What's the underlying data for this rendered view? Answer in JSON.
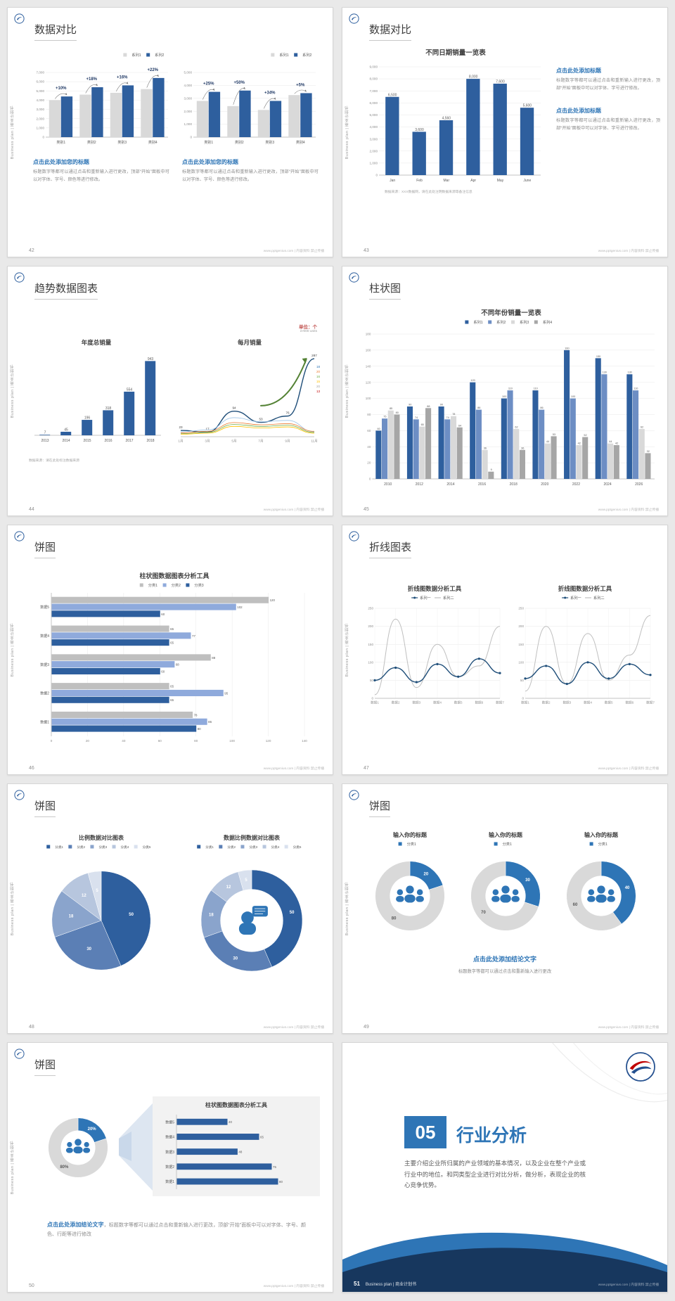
{
  "common": {
    "side_text": "Business plan | 商业计划书",
    "footer_site": "www.pptgenius.com | 内容资料 禁止传播",
    "accent_blue": "#2e75b6",
    "bar_blue": "#2e5f9e",
    "bar_gray": "#d9d9d9"
  },
  "s42": {
    "page": "42",
    "title": "数据对比",
    "charts": [
      {
        "type": "bar",
        "legend": [
          {
            "label": "系列1",
            "color": "#d9d9d9"
          },
          {
            "label": "系列2",
            "color": "#2e5f9e"
          }
        ],
        "legend_pos": "right",
        "categories": [
          "类别1",
          "类别2",
          "类别3",
          "类别4"
        ],
        "series": [
          {
            "name": "系列1",
            "color": "#d9d9d9",
            "values": [
              4000,
              4600,
              4800,
              5200
            ]
          },
          {
            "name": "系列2",
            "color": "#2e5f9e",
            "values": [
              4400,
              5400,
              5600,
              6400
            ]
          }
        ],
        "ymax": 7000,
        "yticks": [
          "7,000",
          "6,000",
          "5,000",
          "4,000",
          "3,000",
          "2,000",
          "1,000",
          "0"
        ],
        "group_labels": [
          "+10%",
          "+18%",
          "+16%",
          "+22%"
        ]
      },
      {
        "type": "bar",
        "legend": [
          {
            "label": "系列1",
            "color": "#d9d9d9"
          },
          {
            "label": "系列2",
            "color": "#2e5f9e"
          }
        ],
        "legend_pos": "right",
        "categories": [
          "类别1",
          "类别2",
          "类别3",
          "类别4"
        ],
        "series": [
          {
            "name": "系列1",
            "color": "#d9d9d9",
            "values": [
              2800,
              2400,
              2100,
              3250
            ]
          },
          {
            "name": "系列2",
            "color": "#2e5f9e",
            "values": [
              3500,
              3600,
              2800,
              3400
            ]
          }
        ],
        "ymax": 5000,
        "yticks": [
          "5,000",
          "4,000",
          "3,000",
          "2,000",
          "1,000",
          "0"
        ],
        "group_labels": [
          "+25%",
          "+50%",
          "+34%",
          "+5%"
        ]
      }
    ],
    "blocks": [
      {
        "heading": "点击此处添加您的标题",
        "body": "标题数字等都可以通过点击和重新输入进行更改，顶部“开始”面板中可以对字体、字号、颜色等进行修改。"
      },
      {
        "heading": "点击此处添加您的标题",
        "body": "标题数字等都可以通过点击和重新输入进行更改，顶部“开始”面板中可以对字体、字号、颜色等进行修改。"
      }
    ]
  },
  "s43": {
    "page": "43",
    "title": "数据对比",
    "chart": {
      "type": "bar",
      "title": "不同日期销量一览表",
      "title_size": 9.5,
      "categories": [
        "Jan",
        "Feb",
        "Mar",
        "Apr",
        "May",
        "June"
      ],
      "series": [
        {
          "name": "销量",
          "color": "#2e5f9e",
          "values": [
            6500,
            3600,
            4560,
            8000,
            7600,
            5600
          ],
          "labels": [
            "6,500",
            "3,600",
            "4,560",
            "8,000",
            "7,600",
            "5,600"
          ]
        }
      ],
      "ymax": 9000,
      "yticks": [
        "9,000",
        "8,000",
        "7,000",
        "6,000",
        "5,000",
        "4,000",
        "3,000",
        "2,000",
        "1,000",
        "0"
      ]
    },
    "source_note": "数据来源：XXX数据网，请在此处注明数据来源等备注信息",
    "blocks": [
      {
        "heading": "点击此处添加标题",
        "body": "标题数字等都可以通过点击和重新输入进行更改，顶部“开始”面板中可以对字体、字号进行修改。"
      },
      {
        "heading": "点击此处添加标题",
        "body": "标题数字等都可以通过点击和重新输入进行更改，顶部“开始”面板中可以对字体、字号进行修改。"
      }
    ]
  },
  "s44": {
    "page": "44",
    "title": "趋势数据图表",
    "unit_line1": "单位：个",
    "unit_line2": "in'000 units",
    "source_note": "数据来源：请在此处标注数据来源",
    "charts": [
      {
        "type": "bar",
        "title": "年度总销量",
        "title_size": 8.5,
        "categories": [
          "2013",
          "2014",
          "2015",
          "2016",
          "2017",
          "2018"
        ],
        "series": [
          {
            "color": "#2e5f9e",
            "values": [
              7,
              45,
              196,
              318,
              554,
              943
            ],
            "labels": [
              "7",
              "45",
              "196",
              "318",
              "554",
              "943"
            ]
          }
        ],
        "ymax": 1000,
        "yticks": []
      },
      {
        "type": "line",
        "title": "每月销量",
        "title_size": 8.5,
        "x": [
          "1月",
          "3月",
          "5月",
          "7月",
          "9月",
          "11月"
        ],
        "ymax": 300,
        "yticks": [],
        "series": [
          {
            "color": "#1f4e79",
            "width": 1.4,
            "values": [
              23,
              17,
              94,
              53,
              76,
              287
            ],
            "labels": [
              "23",
              "17",
              "94",
              "53",
              "76",
              "287"
            ]
          },
          {
            "color": "#9dc3e6",
            "width": 0.8,
            "values": [
              18,
              25,
              70,
              55,
              60,
              18
            ]
          },
          {
            "color": "#ed7d31",
            "width": 0.8,
            "values": [
              14,
              20,
              52,
              44,
              48,
              20
            ]
          },
          {
            "color": "#70ad47",
            "width": 0.8,
            "values": [
              11,
              16,
              45,
              38,
              42,
              16
            ]
          },
          {
            "color": "#ffc000",
            "width": 0.8,
            "values": [
              9,
              13,
              38,
              32,
              36,
              13
            ]
          }
        ],
        "side_labels": [
          "18",
          "20",
          "16",
          "15",
          "20",
          "13"
        ],
        "side_label_colors": [
          "#2e75b6",
          "#ed7d31",
          "#70ad47",
          "#ffc000",
          "#a6a6a6",
          "#c00000"
        ],
        "up_arrow": true
      }
    ]
  },
  "s45": {
    "page": "45",
    "title": "柱状图",
    "chart": {
      "type": "bar",
      "title": "不同年份销量一览表",
      "title_size": 9.5,
      "legend": [
        {
          "label": "系列1",
          "color": "#2e5f9e"
        },
        {
          "label": "系列2",
          "color": "#6d8ec4"
        },
        {
          "label": "系列3",
          "color": "#d9d9d9"
        },
        {
          "label": "系列4",
          "color": "#a6a6a6"
        }
      ],
      "categories": [
        "2010",
        "2012",
        "2014",
        "2016",
        "2018",
        "2020",
        "2022",
        "2024",
        "2026"
      ],
      "series": [
        {
          "color": "#2e5f9e",
          "values": [
            60,
            90,
            90,
            120,
            100,
            110,
            160,
            150,
            130
          ]
        },
        {
          "color": "#6d8ec4",
          "values": [
            75,
            74,
            74,
            86,
            110,
            86,
            100,
            130,
            110
          ]
        },
        {
          "color": "#d9d9d9",
          "values": [
            85,
            65,
            78,
            36,
            62,
            44,
            42,
            44,
            62
          ]
        },
        {
          "color": "#a6a6a6",
          "values": [
            80,
            88,
            64,
            9,
            36,
            53,
            52,
            42,
            32
          ]
        }
      ],
      "label_all": true,
      "ymax": 180,
      "yticks": [
        "180",
        "160",
        "140",
        "120",
        "100",
        "80",
        "60",
        "40",
        "20",
        "0"
      ]
    }
  },
  "s46": {
    "page": "46",
    "title": "饼图",
    "chart": {
      "type": "hbar",
      "title": "柱状图数据图表分析工具",
      "title_size": 9,
      "legend": [
        {
          "label": "分类1",
          "color": "#bfbfbf"
        },
        {
          "label": "分类2",
          "color": "#8faadc"
        },
        {
          "label": "分类3",
          "color": "#2e5f9e"
        }
      ],
      "categories": [
        "数据5",
        "数据4",
        "数据3",
        "数据2",
        "数据1"
      ],
      "series": [
        {
          "color": "#bfbfbf",
          "values": [
            120,
            65,
            88,
            65,
            78
          ]
        },
        {
          "color": "#8faadc",
          "values": [
            102,
            77,
            68,
            95,
            86
          ]
        },
        {
          "color": "#2e5f9e",
          "values": [
            60,
            65,
            60,
            65,
            80
          ]
        }
      ],
      "label_all": true,
      "xmax": 140,
      "xticks": [
        "0",
        "20",
        "40",
        "60",
        "80",
        "100",
        "120",
        "140"
      ]
    }
  },
  "s47": {
    "page": "47",
    "title": "折线图表",
    "charts": [
      {
        "type": "line",
        "title": "折线图数据分析工具",
        "title_size": 8.5,
        "legend": [
          {
            "label": "系列一",
            "color": "#1f4e79",
            "line": true,
            "dot": true
          },
          {
            "label": "系列二",
            "color": "#bfbfbf",
            "line": true
          }
        ],
        "x": [
          "数据1",
          "数据2",
          "数据3",
          "数据4",
          "数据5",
          "数据6",
          "数据7"
        ],
        "ymax": 250,
        "yticks": [
          "250",
          "200",
          "150",
          "100",
          "50",
          "0"
        ],
        "series": [
          {
            "color": "#bfbfbf",
            "width": 1,
            "values": [
              10,
              220,
              30,
              150,
              60,
              90,
              200
            ]
          },
          {
            "color": "#1f4e79",
            "width": 1.4,
            "dots": true,
            "values": [
              50,
              85,
              45,
              95,
              60,
              110,
              70
            ]
          }
        ]
      },
      {
        "type": "line",
        "title": "折线图数据分析工具",
        "title_size": 8.5,
        "legend": [
          {
            "label": "系列一",
            "color": "#1f4e79",
            "line": true,
            "dot": true
          },
          {
            "label": "系列二",
            "color": "#bfbfbf",
            "line": true
          }
        ],
        "x": [
          "数据1",
          "数据2",
          "数据3",
          "数据4",
          "数据5",
          "数据6",
          "数据7"
        ],
        "ymax": 250,
        "yticks": [
          "250",
          "200",
          "150",
          "100",
          "50",
          "0"
        ],
        "series": [
          {
            "color": "#bfbfbf",
            "width": 1,
            "values": [
              20,
              200,
              40,
              180,
              50,
              120,
              230
            ]
          },
          {
            "color": "#1f4e79",
            "width": 1.4,
            "dots": true,
            "values": [
              55,
              90,
              40,
              100,
              55,
              95,
              65
            ]
          }
        ]
      }
    ]
  },
  "s48": {
    "page": "48",
    "title": "饼图",
    "charts": [
      {
        "type": "pie",
        "title": "比例数据对比图表",
        "title_size": 8,
        "legend": [
          {
            "label": "分类1",
            "color": "#2e5f9e"
          },
          {
            "label": "分类2",
            "color": "#5b7fb5"
          },
          {
            "label": "分类3",
            "color": "#8aa4cc"
          },
          {
            "label": "分类4",
            "color": "#b7c6de"
          },
          {
            "label": "分类5",
            "color": "#d9e1ee"
          }
        ],
        "legend_size": 4.6,
        "values": [
          50,
          30,
          18,
          12,
          5
        ],
        "labels": [
          "50",
          "30",
          "18",
          "12",
          "5"
        ],
        "colors": [
          "#2e5f9e",
          "#5b7fb5",
          "#8aa4cc",
          "#b7c6de",
          "#d9e1ee"
        ],
        "inner": 0,
        "r_scale": 0.78
      },
      {
        "type": "pie",
        "title": "数据比例数据对比图表",
        "title_size": 8,
        "legend": [
          {
            "label": "分类1",
            "color": "#2e5f9e"
          },
          {
            "label": "分类2",
            "color": "#5b7fb5"
          },
          {
            "label": "分类3",
            "color": "#8aa4cc"
          },
          {
            "label": "分类4",
            "color": "#b7c6de"
          },
          {
            "label": "分类5",
            "color": "#d9e1ee"
          }
        ],
        "legend_size": 4.6,
        "values": [
          50,
          30,
          18,
          12,
          5
        ],
        "labels": [
          "50",
          "30",
          "18",
          "12",
          "5"
        ],
        "colors": [
          "#2e5f9e",
          "#5b7fb5",
          "#8aa4cc",
          "#b7c6de",
          "#d9e1ee"
        ],
        "inner": 0.62,
        "icon": "person-chat",
        "r_scale": 0.8
      }
    ]
  },
  "s49": {
    "page": "49",
    "title": "饼图",
    "charts": [
      {
        "type": "pie",
        "title": "输入你的标题",
        "title_size": 8,
        "legend": [
          {
            "label": "分类1",
            "color": "#2e75b6"
          }
        ],
        "values": [
          20,
          80
        ],
        "labels": [
          "20",
          "80"
        ],
        "colors": [
          "#2e75b6",
          "#d9d9d9"
        ],
        "label_colors": [
          "#ffffff",
          "#595959"
        ],
        "inner": 0.58,
        "icon": "people",
        "r_scale": 0.85
      },
      {
        "type": "pie",
        "title": "输入你的标题",
        "title_size": 8,
        "legend": [
          {
            "label": "分类1",
            "color": "#2e75b6"
          }
        ],
        "values": [
          30,
          70
        ],
        "labels": [
          "30",
          "70"
        ],
        "colors": [
          "#2e75b6",
          "#d9d9d9"
        ],
        "label_colors": [
          "#ffffff",
          "#595959"
        ],
        "inner": 0.58,
        "icon": "people",
        "r_scale": 0.85
      },
      {
        "type": "pie",
        "title": "输入你的标题",
        "title_size": 8,
        "legend": [
          {
            "label": "分类1",
            "color": "#2e75b6"
          }
        ],
        "values": [
          40,
          60
        ],
        "labels": [
          "40",
          "60"
        ],
        "colors": [
          "#2e75b6",
          "#d9d9d9"
        ],
        "label_colors": [
          "#ffffff",
          "#595959"
        ],
        "inner": 0.58,
        "icon": "people",
        "r_scale": 0.85
      }
    ],
    "conclusion": {
      "heading": "点击此处添加结论文字",
      "body": "标题数字等都可以通过点击和重新输入进行更改"
    }
  },
  "s50": {
    "page": "50",
    "title": "饼图",
    "donut": {
      "type": "pie",
      "values": [
        20,
        80
      ],
      "labels": [
        "20%",
        "80%"
      ],
      "colors": [
        "#2e75b6",
        "#d9d9d9"
      ],
      "label_colors": [
        "#ffffff",
        "#595959"
      ],
      "inner": 0.58,
      "icon": "people",
      "r_scale": 0.9
    },
    "panel_chart": {
      "type": "hbar",
      "title": "柱状图数据图表分析工具",
      "title_size": 8,
      "categories": [
        "数据5",
        "数据4",
        "数据3",
        "数据2",
        "数据1"
      ],
      "series": [
        {
          "color": "#2e5f9e",
          "values": [
            40,
            65,
            48,
            75,
            80
          ]
        }
      ],
      "label_all": true,
      "xmax": 100,
      "xticks": []
    },
    "conclusion_heading": "点击此处添加结论文字",
    "conclusion_body": "，标题数字等都可以通过点击和重新输入进行更改，顶部“开始”面板中可以对字体、字号、颜色、行距等进行修改"
  },
  "s51": {
    "page": "51",
    "number": "05",
    "title": "行业分析",
    "body": "主要介绍企业所归属的产业领域的基本情况，以及企业在整个产业或行业中的地位。和同类型企业进行对比分析，做分析，表现企业的核心竞争优势。",
    "footer": "Business plan | 商业计划书"
  }
}
